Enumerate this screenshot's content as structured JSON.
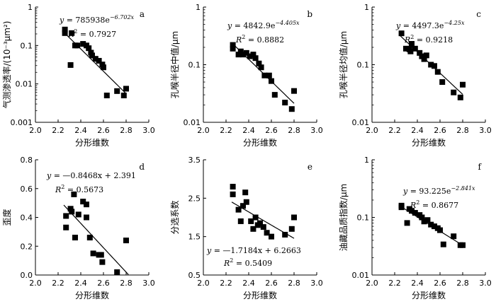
{
  "figure": {
    "common_xlabel": "分形维数",
    "marker_color": "#000000"
  },
  "chart_data": [
    {
      "id": "a",
      "type": "scatter",
      "scale": "log",
      "panel_letter": "a",
      "ylabel": "气测渗透率/(10⁻³μm²)",
      "xlabel": "分形维数",
      "xlim": [
        2.0,
        3.0
      ],
      "ylim": [
        0.001,
        1
      ],
      "xticks": [
        "2.0",
        "2.2",
        "2.4",
        "2.6",
        "2.8",
        "3.0"
      ],
      "yticks": [
        {
          "v": 0.001,
          "label": "0.001"
        },
        {
          "v": 0.01,
          "label": "0.01"
        },
        {
          "v": 0.1,
          "label": "0.1"
        },
        {
          "v": 1,
          "label": "1"
        }
      ],
      "equation": {
        "lhs": "y",
        "eq": " = 785938e",
        "sup": "−6.702x"
      },
      "r2": {
        "lhs": "R",
        "sup": "2",
        "value": " = 0.7927"
      },
      "fit": {
        "kind": "exp",
        "a": 785938,
        "b": -6.702,
        "x_range": [
          2.25,
          2.8
        ]
      },
      "points": [
        {
          "x": 2.26,
          "y": 0.26
        },
        {
          "x": 2.26,
          "y": 0.21
        },
        {
          "x": 2.31,
          "y": 0.031
        },
        {
          "x": 2.32,
          "y": 0.21
        },
        {
          "x": 2.35,
          "y": 0.1
        },
        {
          "x": 2.37,
          "y": 0.1
        },
        {
          "x": 2.42,
          "y": 0.11
        },
        {
          "x": 2.45,
          "y": 0.1
        },
        {
          "x": 2.47,
          "y": 0.085
        },
        {
          "x": 2.49,
          "y": 0.065
        },
        {
          "x": 2.5,
          "y": 0.055
        },
        {
          "x": 2.53,
          "y": 0.045
        },
        {
          "x": 2.56,
          "y": 0.04
        },
        {
          "x": 2.59,
          "y": 0.032
        },
        {
          "x": 2.6,
          "y": 0.027
        },
        {
          "x": 2.63,
          "y": 0.005
        },
        {
          "x": 2.72,
          "y": 0.0065
        },
        {
          "x": 2.78,
          "y": 0.005
        },
        {
          "x": 2.8,
          "y": 0.0075
        }
      ]
    },
    {
      "id": "b",
      "type": "scatter",
      "scale": "log",
      "panel_letter": "b",
      "ylabel": "孔喉半径中值/μm",
      "xlabel": "分形维数",
      "xlim": [
        2.0,
        3.0
      ],
      "ylim": [
        0.01,
        1
      ],
      "xticks": [
        "2.0",
        "2.2",
        "2.4",
        "2.6",
        "2.8",
        "3.0"
      ],
      "yticks": [
        {
          "v": 0.01,
          "label": "0.01"
        },
        {
          "v": 0.1,
          "label": "0.1"
        },
        {
          "v": 1,
          "label": "1"
        }
      ],
      "equation": {
        "lhs": "y",
        "eq": " = 4842.9e",
        "sup": "−4.405x"
      },
      "r2": {
        "lhs": "R",
        "sup": "2",
        "value": " = 0.8882"
      },
      "fit": {
        "kind": "exp",
        "a": 4842.9,
        "b": -4.405,
        "x_range": [
          2.25,
          2.8
        ]
      },
      "points": [
        {
          "x": 2.26,
          "y": 0.22
        },
        {
          "x": 2.26,
          "y": 0.19
        },
        {
          "x": 2.31,
          "y": 0.15
        },
        {
          "x": 2.33,
          "y": 0.17
        },
        {
          "x": 2.35,
          "y": 0.15
        },
        {
          "x": 2.38,
          "y": 0.16
        },
        {
          "x": 2.41,
          "y": 0.14
        },
        {
          "x": 2.44,
          "y": 0.15
        },
        {
          "x": 2.46,
          "y": 0.13
        },
        {
          "x": 2.49,
          "y": 0.105
        },
        {
          "x": 2.51,
          "y": 0.09
        },
        {
          "x": 2.54,
          "y": 0.065
        },
        {
          "x": 2.58,
          "y": 0.065
        },
        {
          "x": 2.6,
          "y": 0.052
        },
        {
          "x": 2.63,
          "y": 0.03
        },
        {
          "x": 2.72,
          "y": 0.022
        },
        {
          "x": 2.78,
          "y": 0.017
        },
        {
          "x": 2.8,
          "y": 0.035
        }
      ]
    },
    {
      "id": "c",
      "type": "scatter",
      "scale": "log",
      "panel_letter": "c",
      "ylabel": "孔喉半径均值/μm",
      "xlabel": "分形维数",
      "xlim": [
        2.0,
        3.0
      ],
      "ylim": [
        0.01,
        1
      ],
      "xticks": [
        "2.0",
        "2.2",
        "2.4",
        "2.6",
        "2.8",
        "3.0"
      ],
      "yticks": [
        {
          "v": 0.01,
          "label": "0.01"
        },
        {
          "v": 0.1,
          "label": "0.1"
        },
        {
          "v": 1,
          "label": "1"
        }
      ],
      "equation": {
        "lhs": "y",
        "eq": " = 4497.3e",
        "sup": "−4.25x"
      },
      "r2": {
        "lhs": "R",
        "sup": "2",
        "value": " = 0.9218"
      },
      "fit": {
        "kind": "exp",
        "a": 4497.3,
        "b": -4.25,
        "x_range": [
          2.25,
          2.8
        ]
      },
      "points": [
        {
          "x": 2.26,
          "y": 0.35
        },
        {
          "x": 2.3,
          "y": 0.19
        },
        {
          "x": 2.33,
          "y": 0.185
        },
        {
          "x": 2.34,
          "y": 0.17
        },
        {
          "x": 2.35,
          "y": 0.23
        },
        {
          "x": 2.38,
          "y": 0.19
        },
        {
          "x": 2.42,
          "y": 0.16
        },
        {
          "x": 2.44,
          "y": 0.14
        },
        {
          "x": 2.46,
          "y": 0.125
        },
        {
          "x": 2.48,
          "y": 0.145
        },
        {
          "x": 2.52,
          "y": 0.1
        },
        {
          "x": 2.55,
          "y": 0.095
        },
        {
          "x": 2.58,
          "y": 0.075
        },
        {
          "x": 2.62,
          "y": 0.05
        },
        {
          "x": 2.72,
          "y": 0.033
        },
        {
          "x": 2.78,
          "y": 0.027
        },
        {
          "x": 2.8,
          "y": 0.045
        }
      ]
    },
    {
      "id": "d",
      "type": "scatter",
      "scale": "linear",
      "panel_letter": "d",
      "ylabel": "歪度",
      "xlabel": "分形维数",
      "xlim": [
        2.0,
        3.0
      ],
      "ylim": [
        0,
        0.8
      ],
      "xticks": [
        "2.0",
        "2.2",
        "2.4",
        "2.6",
        "2.8",
        "3.0"
      ],
      "yticks": [
        {
          "v": 0,
          "label": "0.0"
        },
        {
          "v": 0.2,
          "label": "0.2"
        },
        {
          "v": 0.4,
          "label": "0.4"
        },
        {
          "v": 0.6,
          "label": "0.6"
        },
        {
          "v": 0.8,
          "label": "0.8"
        }
      ],
      "equation": {
        "lhs": "y",
        "eq": " = —0.8468x + 2.391",
        "sup": ""
      },
      "r2": {
        "lhs": "R",
        "sup": "2",
        "value": " = 0.5673"
      },
      "fit": {
        "kind": "linear",
        "a": -0.8468,
        "b": 2.391,
        "x_range": [
          2.25,
          2.82
        ]
      },
      "points": [
        {
          "x": 2.27,
          "y": 0.41
        },
        {
          "x": 2.27,
          "y": 0.33
        },
        {
          "x": 2.31,
          "y": 0.46
        },
        {
          "x": 2.32,
          "y": 0.44
        },
        {
          "x": 2.34,
          "y": 0.56
        },
        {
          "x": 2.35,
          "y": 0.26
        },
        {
          "x": 2.38,
          "y": 0.42
        },
        {
          "x": 2.42,
          "y": 0.51
        },
        {
          "x": 2.45,
          "y": 0.49
        },
        {
          "x": 2.45,
          "y": 0.4
        },
        {
          "x": 2.48,
          "y": 0.26
        },
        {
          "x": 2.51,
          "y": 0.15
        },
        {
          "x": 2.56,
          "y": 0.14
        },
        {
          "x": 2.58,
          "y": 0.14
        },
        {
          "x": 2.59,
          "y": 0.09
        },
        {
          "x": 2.72,
          "y": 0.02
        },
        {
          "x": 2.8,
          "y": 0.24
        }
      ]
    },
    {
      "id": "e",
      "type": "scatter",
      "scale": "linear",
      "panel_letter": "e",
      "ylabel": "分选系数",
      "xlabel": "分形维数",
      "xlim": [
        2.0,
        3.0
      ],
      "ylim": [
        0.5,
        3.5
      ],
      "xticks": [
        "2.0",
        "2.2",
        "2.4",
        "2.6",
        "2.8",
        "3.0"
      ],
      "yticks": [
        {
          "v": 0.5,
          "label": "0.5"
        },
        {
          "v": 1.5,
          "label": "1.5"
        },
        {
          "v": 2.5,
          "label": "2.5"
        },
        {
          "v": 3.5,
          "label": "3.5"
        }
      ],
      "equation": {
        "lhs": "y",
        "eq": " = —1.7184x + 6.2663",
        "sup": ""
      },
      "r2": {
        "lhs": "R",
        "sup": "2",
        "value": " = 0.5409"
      },
      "fit": {
        "kind": "linear",
        "a": -1.7184,
        "b": 6.2663,
        "x_range": [
          2.25,
          2.8
        ]
      },
      "points": [
        {
          "x": 2.26,
          "y": 2.8
        },
        {
          "x": 2.26,
          "y": 2.6
        },
        {
          "x": 2.31,
          "y": 2.2
        },
        {
          "x": 2.33,
          "y": 1.9
        },
        {
          "x": 2.35,
          "y": 2.3
        },
        {
          "x": 2.37,
          "y": 2.65
        },
        {
          "x": 2.38,
          "y": 2.4
        },
        {
          "x": 2.42,
          "y": 1.9
        },
        {
          "x": 2.44,
          "y": 1.7
        },
        {
          "x": 2.46,
          "y": 2.0
        },
        {
          "x": 2.48,
          "y": 1.8
        },
        {
          "x": 2.5,
          "y": 1.85
        },
        {
          "x": 2.53,
          "y": 1.75
        },
        {
          "x": 2.56,
          "y": 1.6
        },
        {
          "x": 2.6,
          "y": 1.5
        },
        {
          "x": 2.72,
          "y": 1.55
        },
        {
          "x": 2.78,
          "y": 1.7
        },
        {
          "x": 2.8,
          "y": 2.0
        }
      ]
    },
    {
      "id": "f",
      "type": "scatter",
      "scale": "log",
      "panel_letter": "f",
      "ylabel": "油藏品质指数/μm",
      "xlabel": "分形维数",
      "xlim": [
        2.0,
        3.0
      ],
      "ylim": [
        0.01,
        1
      ],
      "xticks": [
        "2.0",
        "2.2",
        "2.4",
        "2.6",
        "2.8",
        "3.0"
      ],
      "yticks": [
        {
          "v": 0.01,
          "label": "0.01"
        },
        {
          "v": 0.1,
          "label": "0.1"
        },
        {
          "v": 1,
          "label": "1"
        }
      ],
      "equation": {
        "lhs": "y",
        "eq": " = 93.225e",
        "sup": "−2.841x"
      },
      "r2": {
        "lhs": "R",
        "sup": "2",
        "value": " = 0.8677"
      },
      "fit": {
        "kind": "exp",
        "a": 93.225,
        "b": -2.841,
        "x_range": [
          2.25,
          2.8
        ]
      },
      "points": [
        {
          "x": 2.26,
          "y": 0.16
        },
        {
          "x": 2.26,
          "y": 0.15
        },
        {
          "x": 2.31,
          "y": 0.08
        },
        {
          "x": 2.33,
          "y": 0.14
        },
        {
          "x": 2.35,
          "y": 0.13
        },
        {
          "x": 2.38,
          "y": 0.12
        },
        {
          "x": 2.42,
          "y": 0.11
        },
        {
          "x": 2.44,
          "y": 0.1
        },
        {
          "x": 2.46,
          "y": 0.085
        },
        {
          "x": 2.49,
          "y": 0.09
        },
        {
          "x": 2.52,
          "y": 0.075
        },
        {
          "x": 2.55,
          "y": 0.07
        },
        {
          "x": 2.58,
          "y": 0.065
        },
        {
          "x": 2.6,
          "y": 0.06
        },
        {
          "x": 2.63,
          "y": 0.034
        },
        {
          "x": 2.72,
          "y": 0.047
        },
        {
          "x": 2.78,
          "y": 0.033
        },
        {
          "x": 2.8,
          "y": 0.033
        }
      ]
    }
  ]
}
